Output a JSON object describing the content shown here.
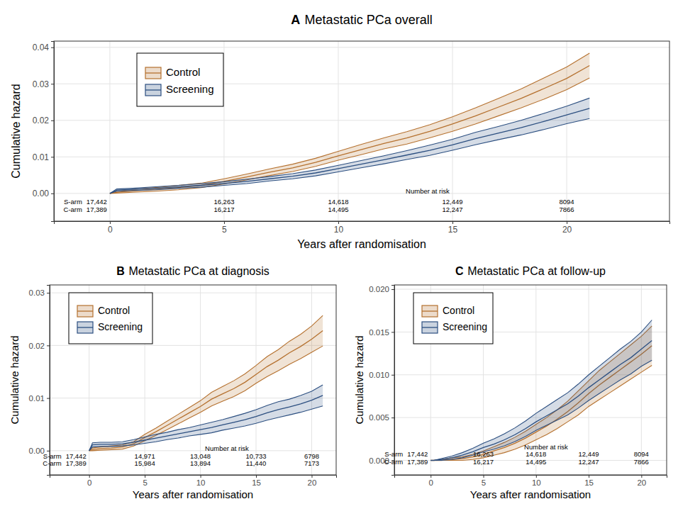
{
  "chart_data": [
    {
      "type": "line",
      "label": "A",
      "title": "Metastatic PCa overall",
      "x_label": "Years after randomisation",
      "y_label": "Cumulative hazard",
      "x": [
        0,
        0.3,
        1,
        2,
        3,
        4,
        5,
        6,
        7,
        8,
        9,
        10,
        11,
        12,
        13,
        14,
        15,
        16,
        17,
        18,
        19,
        20,
        21
      ],
      "series": [
        {
          "name": "Control",
          "color": "#b5712f",
          "values": [
            0,
            0.0003,
            0.0007,
            0.0011,
            0.0016,
            0.0022,
            0.0033,
            0.0045,
            0.0058,
            0.007,
            0.0085,
            0.0103,
            0.012,
            0.0137,
            0.0152,
            0.017,
            0.019,
            0.0212,
            0.0236,
            0.026,
            0.0287,
            0.0315,
            0.035
          ],
          "lower": [
            0,
            0.0001,
            0.0003,
            0.0006,
            0.001,
            0.0016,
            0.0026,
            0.0037,
            0.0049,
            0.006,
            0.0074,
            0.0091,
            0.0106,
            0.0122,
            0.0135,
            0.0152,
            0.017,
            0.019,
            0.0212,
            0.0234,
            0.0258,
            0.0284,
            0.0316
          ],
          "upper": [
            0,
            0.0006,
            0.0011,
            0.0016,
            0.0022,
            0.0028,
            0.004,
            0.0053,
            0.0067,
            0.008,
            0.0096,
            0.0115,
            0.0134,
            0.0152,
            0.0169,
            0.0188,
            0.021,
            0.0234,
            0.026,
            0.0286,
            0.0316,
            0.0346,
            0.0384
          ]
        },
        {
          "name": "Screening",
          "color": "#2c4f80",
          "values": [
            0,
            0.0009,
            0.0011,
            0.0014,
            0.0018,
            0.0022,
            0.0027,
            0.0033,
            0.004,
            0.0047,
            0.0056,
            0.0068,
            0.008,
            0.0092,
            0.0105,
            0.0118,
            0.0133,
            0.015,
            0.0165,
            0.018,
            0.0197,
            0.0215,
            0.0233
          ],
          "lower": [
            0,
            0.0006,
            0.0008,
            0.001,
            0.0014,
            0.0017,
            0.0022,
            0.0027,
            0.0034,
            0.004,
            0.0048,
            0.0059,
            0.007,
            0.0081,
            0.0093,
            0.0104,
            0.0118,
            0.0133,
            0.0147,
            0.016,
            0.0175,
            0.0191,
            0.0205
          ],
          "upper": [
            0,
            0.0012,
            0.0014,
            0.0018,
            0.0022,
            0.0027,
            0.0032,
            0.0039,
            0.0046,
            0.0054,
            0.0064,
            0.0077,
            0.009,
            0.0103,
            0.0117,
            0.0132,
            0.0148,
            0.0167,
            0.0183,
            0.02,
            0.0219,
            0.0239,
            0.0261
          ]
        }
      ],
      "xlim": [
        -2.45,
        24.5
      ],
      "ylim": [
        -0.0076,
        0.0417
      ],
      "xticks": [
        0,
        5,
        10,
        15,
        20
      ],
      "yticks": [
        {
          "value": 0,
          "label": "0.00"
        },
        {
          "value": 0.01,
          "label": "0.01"
        },
        {
          "value": 0.02,
          "label": "0.02"
        },
        {
          "value": 0.03,
          "label": "0.03"
        },
        {
          "value": 0.04,
          "label": "0.04"
        }
      ],
      "grid": true,
      "legend": "top-left",
      "number_at_risk": {
        "title": "Number at risk",
        "x": [
          0,
          5,
          10,
          15,
          20
        ],
        "rows": [
          {
            "name": "S-arm",
            "values": [
              17442,
              16263,
              14618,
              12449,
              8094
            ],
            "value_labels": [
              "17,442",
              "16,263",
              "14,618",
              "12,449",
              "8094"
            ]
          },
          {
            "name": "C-arm",
            "values": [
              17389,
              16217,
              14495,
              12247,
              7866
            ],
            "value_labels": [
              "17,389",
              "16,217",
              "14,495",
              "12,247",
              "7866"
            ]
          }
        ]
      }
    },
    {
      "type": "line",
      "label": "B",
      "title": "Metastatic PCa at diagnosis",
      "x_label": "Years after randomisation",
      "y_label": "Cumulative hazard",
      "x": [
        0,
        0.3,
        1,
        2,
        3,
        4,
        5,
        6,
        7,
        8,
        9,
        10,
        11,
        12,
        13,
        14,
        15,
        16,
        17,
        18,
        19,
        20,
        21
      ],
      "series": [
        {
          "name": "Control",
          "color": "#b5712f",
          "values": [
            0,
            0.0002,
            0.0004,
            0.0005,
            0.0007,
            0.0013,
            0.0025,
            0.0036,
            0.0048,
            0.006,
            0.0072,
            0.0084,
            0.0098,
            0.0108,
            0.0118,
            0.013,
            0.0145,
            0.016,
            0.0172,
            0.0186,
            0.0198,
            0.0212,
            0.0228
          ],
          "lower": [
            0,
            0.0,
            0.0001,
            0.0002,
            0.0003,
            0.0009,
            0.0019,
            0.0029,
            0.004,
            0.0051,
            0.0062,
            0.0073,
            0.0085,
            0.0094,
            0.0103,
            0.0114,
            0.0128,
            0.0141,
            0.0152,
            0.0164,
            0.0175,
            0.0187,
            0.0199
          ],
          "upper": [
            0,
            0.0005,
            0.0007,
            0.0009,
            0.0011,
            0.0017,
            0.0031,
            0.0043,
            0.0056,
            0.0069,
            0.0082,
            0.0095,
            0.0111,
            0.0122,
            0.0133,
            0.0146,
            0.0162,
            0.0179,
            0.0192,
            0.0208,
            0.0221,
            0.0237,
            0.0257
          ]
        },
        {
          "name": "Screening",
          "color": "#2c4f80",
          "values": [
            0,
            0.0011,
            0.0012,
            0.0012,
            0.0013,
            0.0016,
            0.002,
            0.0024,
            0.0028,
            0.0032,
            0.0036,
            0.004,
            0.0044,
            0.0049,
            0.0054,
            0.0059,
            0.0065,
            0.0072,
            0.0078,
            0.0083,
            0.0089,
            0.0096,
            0.0105
          ],
          "lower": [
            0,
            0.0007,
            0.0008,
            0.0008,
            0.0009,
            0.0011,
            0.0014,
            0.0017,
            0.0021,
            0.0024,
            0.0028,
            0.0031,
            0.0034,
            0.0039,
            0.0043,
            0.0047,
            0.0052,
            0.0058,
            0.0063,
            0.0068,
            0.0073,
            0.0079,
            0.0085
          ],
          "upper": [
            0,
            0.0015,
            0.0016,
            0.0016,
            0.0017,
            0.0021,
            0.0026,
            0.0031,
            0.0035,
            0.004,
            0.0044,
            0.0049,
            0.0054,
            0.0059,
            0.0065,
            0.0071,
            0.0078,
            0.0086,
            0.0093,
            0.0098,
            0.0105,
            0.0113,
            0.0125
          ]
        }
      ],
      "xlim": [
        -3.55,
        22.2
      ],
      "ylim": [
        -0.0046,
        0.0315
      ],
      "xticks": [
        0,
        5,
        10,
        15,
        20
      ],
      "yticks": [
        {
          "value": 0,
          "label": "0.00"
        },
        {
          "value": 0.01,
          "label": "0.01"
        },
        {
          "value": 0.02,
          "label": "0.02"
        },
        {
          "value": 0.03,
          "label": "0.03"
        }
      ],
      "grid": true,
      "legend": "top-left",
      "number_at_risk": {
        "title": "Number at risk",
        "x": [
          0,
          5,
          10,
          15,
          20
        ],
        "rows": [
          {
            "name": "S-arm",
            "values": [
              17442,
              14971,
              13048,
              10733,
              6798
            ],
            "value_labels": [
              "17,442",
              "14,971",
              "13,048",
              "10,733",
              "6798"
            ]
          },
          {
            "name": "C-arm",
            "values": [
              17389,
              15984,
              13894,
              11440,
              7173
            ],
            "value_labels": [
              "17,389",
              "15,984",
              "13,894",
              "11,440",
              "7173"
            ]
          }
        ]
      }
    },
    {
      "type": "line",
      "label": "C",
      "title": "Metastatic PCa at follow-up",
      "x_label": "Years after randomisation",
      "y_label": "Cumulative hazard",
      "x": [
        0,
        0.3,
        1,
        2,
        3,
        4,
        5,
        6,
        7,
        8,
        9,
        10,
        11,
        12,
        13,
        14,
        15,
        16,
        17,
        18,
        19,
        20,
        21
      ],
      "series": [
        {
          "name": "Control",
          "color": "#b5712f",
          "values": [
            0,
            0,
            0,
            0.0001,
            0.0002,
            0.0004,
            0.0007,
            0.0011,
            0.0015,
            0.002,
            0.0026,
            0.0033,
            0.004,
            0.0048,
            0.0057,
            0.0067,
            0.0078,
            0.0088,
            0.0097,
            0.0106,
            0.0115,
            0.0124,
            0.0134
          ],
          "lower": [
            0,
            0,
            0,
            0,
            0,
            0.0001,
            0.0003,
            0.0006,
            0.0009,
            0.0013,
            0.0018,
            0.0024,
            0.003,
            0.0037,
            0.0045,
            0.0053,
            0.0063,
            0.0071,
            0.0079,
            0.0087,
            0.0095,
            0.0103,
            0.0111
          ],
          "upper": [
            0,
            0,
            0.0001,
            0.0003,
            0.0004,
            0.0007,
            0.0011,
            0.0016,
            0.0021,
            0.0027,
            0.0034,
            0.0042,
            0.005,
            0.0059,
            0.0069,
            0.0081,
            0.0093,
            0.0105,
            0.0115,
            0.0125,
            0.0135,
            0.0145,
            0.0157
          ]
        },
        {
          "name": "Screening",
          "color": "#2c4f80",
          "values": [
            0,
            0,
            0.0001,
            0.0003,
            0.0006,
            0.001,
            0.0015,
            0.0019,
            0.0024,
            0.003,
            0.0037,
            0.0045,
            0.0052,
            0.0059,
            0.0066,
            0.0075,
            0.0085,
            0.0094,
            0.0103,
            0.0112,
            0.012,
            0.013,
            0.014
          ],
          "lower": [
            0,
            0,
            0,
            0.0001,
            0.0003,
            0.0006,
            0.001,
            0.0013,
            0.0017,
            0.0022,
            0.0028,
            0.0035,
            0.0041,
            0.0047,
            0.0053,
            0.0061,
            0.007,
            0.0078,
            0.0086,
            0.0094,
            0.0101,
            0.011,
            0.0117
          ],
          "upper": [
            0,
            0,
            0.0002,
            0.0005,
            0.0009,
            0.0014,
            0.002,
            0.0025,
            0.0031,
            0.0038,
            0.0046,
            0.0055,
            0.0063,
            0.0071,
            0.0079,
            0.0089,
            0.01,
            0.011,
            0.012,
            0.013,
            0.0139,
            0.015,
            0.0164
          ]
        }
      ],
      "xlim": [
        -3.45,
        22.4
      ],
      "ylim": [
        -0.0017,
        0.0205
      ],
      "xticks": [
        0,
        5,
        10,
        15,
        20
      ],
      "yticks": [
        {
          "value": 0,
          "label": "0.000"
        },
        {
          "value": 0.005,
          "label": "0.005"
        },
        {
          "value": 0.01,
          "label": "0.010"
        },
        {
          "value": 0.015,
          "label": "0.015"
        },
        {
          "value": 0.02,
          "label": "0.020"
        }
      ],
      "grid": true,
      "legend": "top-left",
      "number_at_risk": {
        "title": "Number at risk",
        "x": [
          0,
          5,
          10,
          15,
          20
        ],
        "rows": [
          {
            "name": "S-arm",
            "values": [
              17442,
              16263,
              14618,
              12449,
              8094
            ],
            "value_labels": [
              "17,442",
              "16,263",
              "14,618",
              "12,449",
              "8094"
            ]
          },
          {
            "name": "C-arm",
            "values": [
              17389,
              16217,
              14495,
              12247,
              7866
            ],
            "value_labels": [
              "17,389",
              "16,217",
              "14,495",
              "12,247",
              "7866"
            ]
          }
        ]
      }
    }
  ]
}
